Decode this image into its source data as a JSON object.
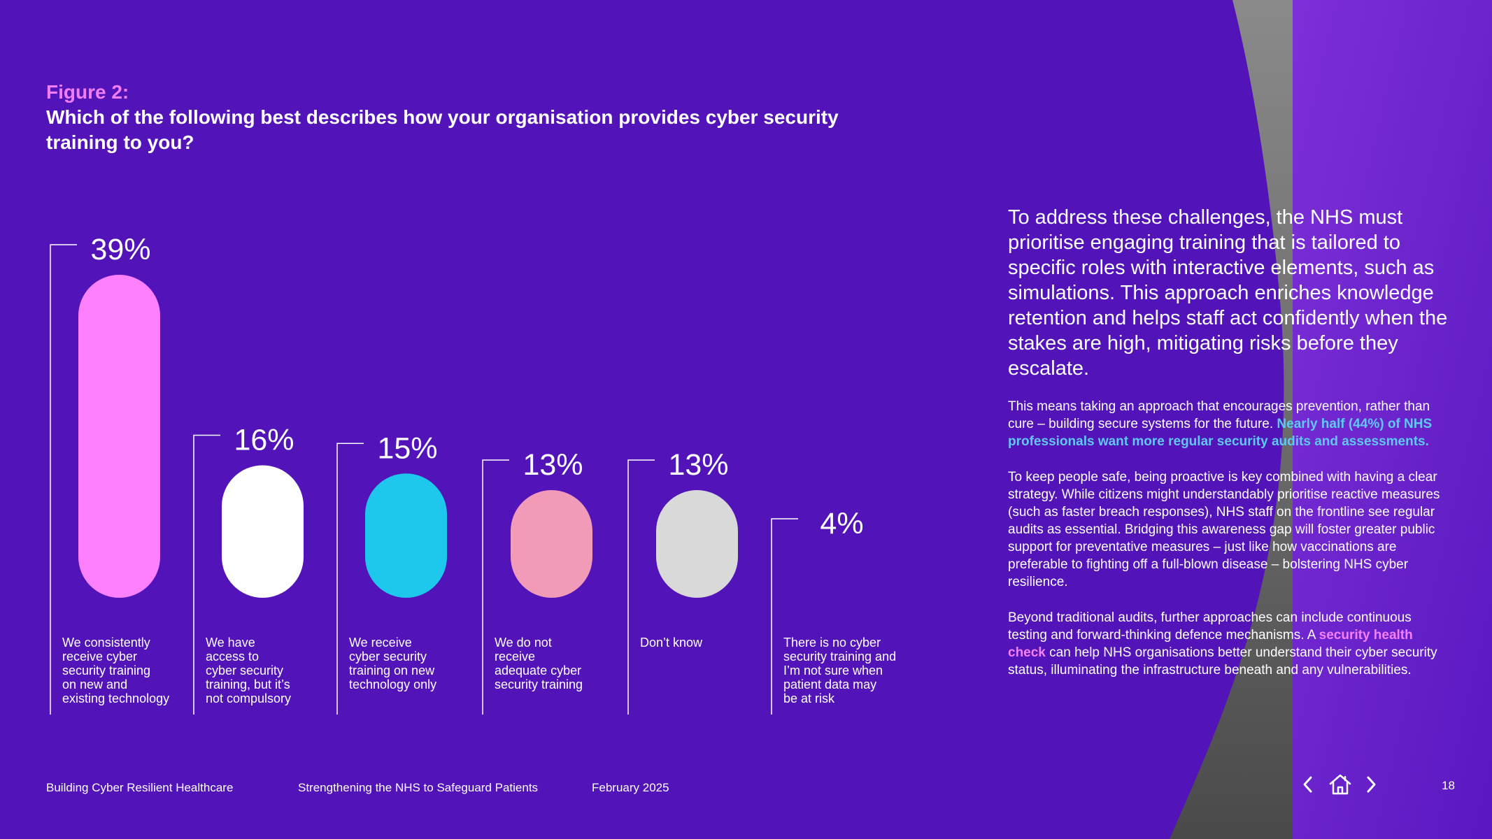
{
  "figure": {
    "label": "Figure 2:",
    "question": "Which of the following best describes how your organisation provides cyber security training to you?"
  },
  "chart_data": {
    "type": "bar",
    "title": "Which of the following best describes how your organisation provides cyber security training to you?",
    "unit": "%",
    "categories": [
      "We consistently receive cyber security training on new and existing technology",
      "We have access to cyber security training, but it’s not compulsory",
      "We receive cyber security training on new technology only",
      "We do not receive adequate cyber security training",
      "Don’t know",
      "There is no cyber security training and I’m not sure when patient data may be at risk"
    ],
    "values": [
      39,
      16,
      15,
      13,
      13,
      4
    ],
    "value_labels": [
      "39%",
      "16%",
      "15%",
      "13%",
      "13%",
      "4%"
    ],
    "category_lines": [
      [
        "We consistently",
        "receive cyber",
        "security training",
        "on new and",
        "existing technology"
      ],
      [
        "We have",
        "access to",
        "cyber security",
        "training, but it’s",
        "not compulsory"
      ],
      [
        "We receive",
        "cyber security",
        "training on new",
        "technology only"
      ],
      [
        "We do not",
        "receive",
        "adequate cyber",
        "security training"
      ],
      [
        "Don’t know"
      ],
      [
        "There is no cyber",
        "security training and",
        "I’m not sure when",
        "patient data may",
        "be at risk"
      ]
    ],
    "colors": [
      "#ff80ff",
      "#ffffff",
      "#1ec8ec",
      "#f29bb8",
      "#d9d9d9",
      "#5214b8"
    ],
    "ylim": [
      0,
      39
    ]
  },
  "right_text": {
    "lead": "To address these challenges, the NHS must prioritise engaging training that is tailored to specific roles with interactive elements, such as simulations. This approach enriches knowledge retention and helps staff act confidently when the stakes are high, mitigating risks before they escalate.",
    "para1_start": "This means taking an approach that encourages prevention, rather than cure – building secure systems for the future.",
    "para1_highlight": "Nearly half (44%) of NHS professionals want more regular security audits and assessments.",
    "para2": "To keep people safe, being proactive is key combined with having a clear strategy. While citizens might understandably prioritise reactive measures (such as faster breach responses), NHS staff on the frontline see regular audits as essential. Bridging this awareness gap will foster greater public support for preventative measures – just like how vaccinations are preferable to fighting off a full-blown disease – bolstering NHS cyber resilience.",
    "para3_start": "Beyond traditional audits, further approaches can include continuous testing and forward-thinking defence mechanisms. A",
    "para3_link": "security health check",
    "para3_end": "can help NHS organisations better understand their cyber security status, illuminating the infrastructure beneath and any vulnerabilities."
  },
  "footer": {
    "title": "Building Cyber Resilient Healthcare",
    "subtitle": "Strengthening the NHS to Safeguard Patients",
    "date": "February 2025",
    "page_number": "18"
  },
  "nav": {
    "prev_icon": "chevron-left-icon",
    "home_icon": "home-icon",
    "next_icon": "chevron-right-icon"
  },
  "colors": {
    "background": "#5214b8",
    "accent_pink": "#f07ff7",
    "accent_blue": "#5fc8f5",
    "swoosh_grey": "#6b6b6b",
    "corner_purple": "#7a2bd1"
  }
}
